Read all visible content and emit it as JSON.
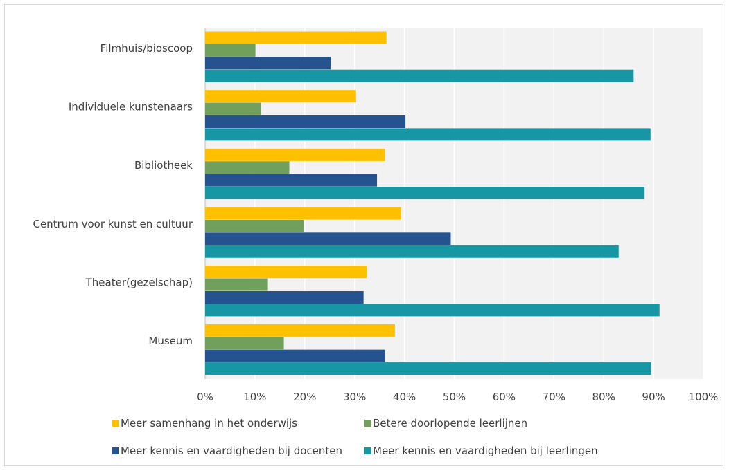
{
  "chart_data": {
    "type": "bar",
    "orientation": "horizontal",
    "categories": [
      "Filmhuis/bioscoop",
      "Individuele kunstenaars",
      "Bibliotheek",
      "Centrum voor kunst en cultuur",
      "Theater(gezelschap)",
      "Museum"
    ],
    "series": [
      {
        "name": "Meer samenhang in het onderwijs",
        "color": "#FFC000",
        "values": [
          36.4,
          30.3,
          36.1,
          39.3,
          32.4,
          38.1
        ]
      },
      {
        "name": "Betere doorlopende leerlijnen",
        "color": "#70A05B",
        "values": [
          10.1,
          11.2,
          16.9,
          19.8,
          12.6,
          15.8
        ]
      },
      {
        "name": "Meer kennis en vaardigheden bij docenten",
        "color": "#24538F",
        "values": [
          25.2,
          40.2,
          34.5,
          49.3,
          31.8,
          36.1
        ]
      },
      {
        "name": "Meer kennis en vaardigheden bij leerlingen",
        "color": "#1797A4",
        "values": [
          86.0,
          89.4,
          88.2,
          83.0,
          91.2,
          89.5
        ]
      }
    ],
    "xlim": [
      0,
      100
    ],
    "xticks": [
      0,
      10,
      20,
      30,
      40,
      50,
      60,
      70,
      80,
      90,
      100
    ],
    "xtick_labels": [
      "0%",
      "10%",
      "20%",
      "30%",
      "40%",
      "50%",
      "60%",
      "70%",
      "80%",
      "90%",
      "100%"
    ],
    "grid": true,
    "plot_background": "#F2F2F2",
    "gridline_color": "#FFFFFF",
    "legend_position": "bottom",
    "title": "",
    "xlabel": "",
    "ylabel": ""
  }
}
